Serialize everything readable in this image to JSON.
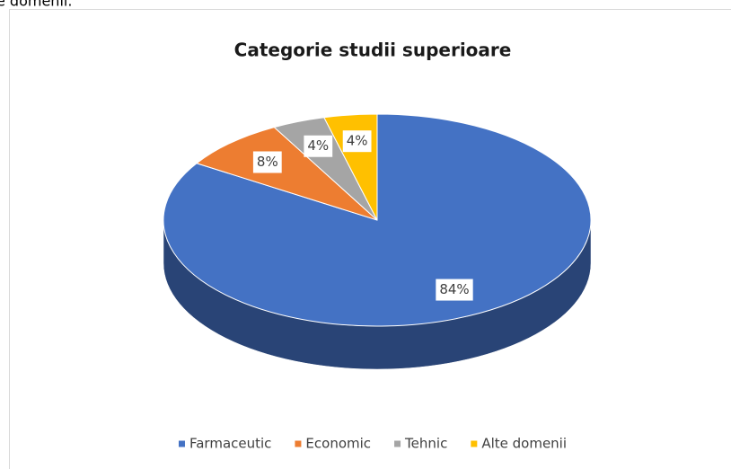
{
  "page_text": "e domenii.",
  "chart_data": {
    "type": "pie3d",
    "title": "Categorie studii superioare",
    "categories": [
      "Farmaceutic",
      "Economic",
      "Tehnic",
      "Alte domenii"
    ],
    "values": [
      84,
      8,
      4,
      4
    ],
    "value_labels": [
      "84%",
      "8%",
      "4%",
      "4%"
    ],
    "colors": [
      "#4472c4",
      "#ed7d31",
      "#a5a5a5",
      "#ffc000"
    ],
    "legend": "bottom"
  }
}
